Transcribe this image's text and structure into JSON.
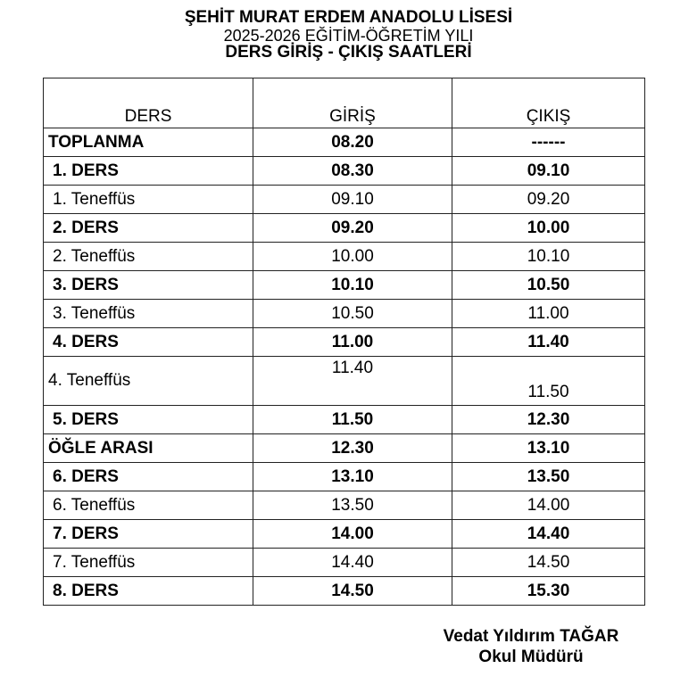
{
  "header": {
    "school": "ŞEHİT MURAT ERDEM ANADOLU LİSESİ",
    "year": "2025-2026 EĞİTİM-ÖĞRETİM YILI",
    "title": "DERS GİRİŞ - ÇIKIŞ SAATLERİ"
  },
  "table": {
    "columns": [
      "DERS",
      "GİRİŞ",
      "ÇIKIŞ"
    ],
    "rows": [
      {
        "ders": "TOPLANMA",
        "giris": "08.20",
        "cikis": "------",
        "bold": true
      },
      {
        "ders": "1. DERS",
        "giris": "08.30",
        "cikis": "09.10",
        "bold": true
      },
      {
        "ders": "1. Teneffüs",
        "giris": "09.10",
        "cikis": "09.20",
        "bold": false
      },
      {
        "ders": "2. DERS",
        "giris": "09.20",
        "cikis": "10.00",
        "bold": true
      },
      {
        "ders": "2. Teneffüs",
        "giris": "10.00",
        "cikis": "10.10",
        "bold": false
      },
      {
        "ders": "3. DERS",
        "giris": "10.10",
        "cikis": "10.50",
        "bold": true
      },
      {
        "ders": "3. Teneffüs",
        "giris": "10.50",
        "cikis": "11.00",
        "bold": false
      },
      {
        "ders": "4. DERS",
        "giris": "11.00",
        "cikis": "11.40",
        "bold": true
      },
      {
        "ders": "4. Teneffüs",
        "giris": "11.40",
        "cikis": "11.50",
        "bold": false
      },
      {
        "ders": "5. DERS",
        "giris": "11.50",
        "cikis": "12.30",
        "bold": true
      },
      {
        "ders": "ÖĞLE ARASI",
        "giris": "12.30",
        "cikis": "13.10",
        "bold": true
      },
      {
        "ders": "6. DERS",
        "giris": "13.10",
        "cikis": "13.50",
        "bold": true
      },
      {
        "ders": "6. Teneffüs",
        "giris": "13.50",
        "cikis": "14.00",
        "bold": false
      },
      {
        "ders": "7. DERS",
        "giris": "14.00",
        "cikis": "14.40",
        "bold": true
      },
      {
        "ders": "7. Teneffüs",
        "giris": "14.40",
        "cikis": "14.50",
        "bold": false
      },
      {
        "ders": "8. DERS",
        "giris": "14.50",
        "cikis": "15.30",
        "bold": true
      }
    ]
  },
  "signature": {
    "name": "Vedat Yıldırım TAĞAR",
    "role": "Okul Müdürü"
  }
}
